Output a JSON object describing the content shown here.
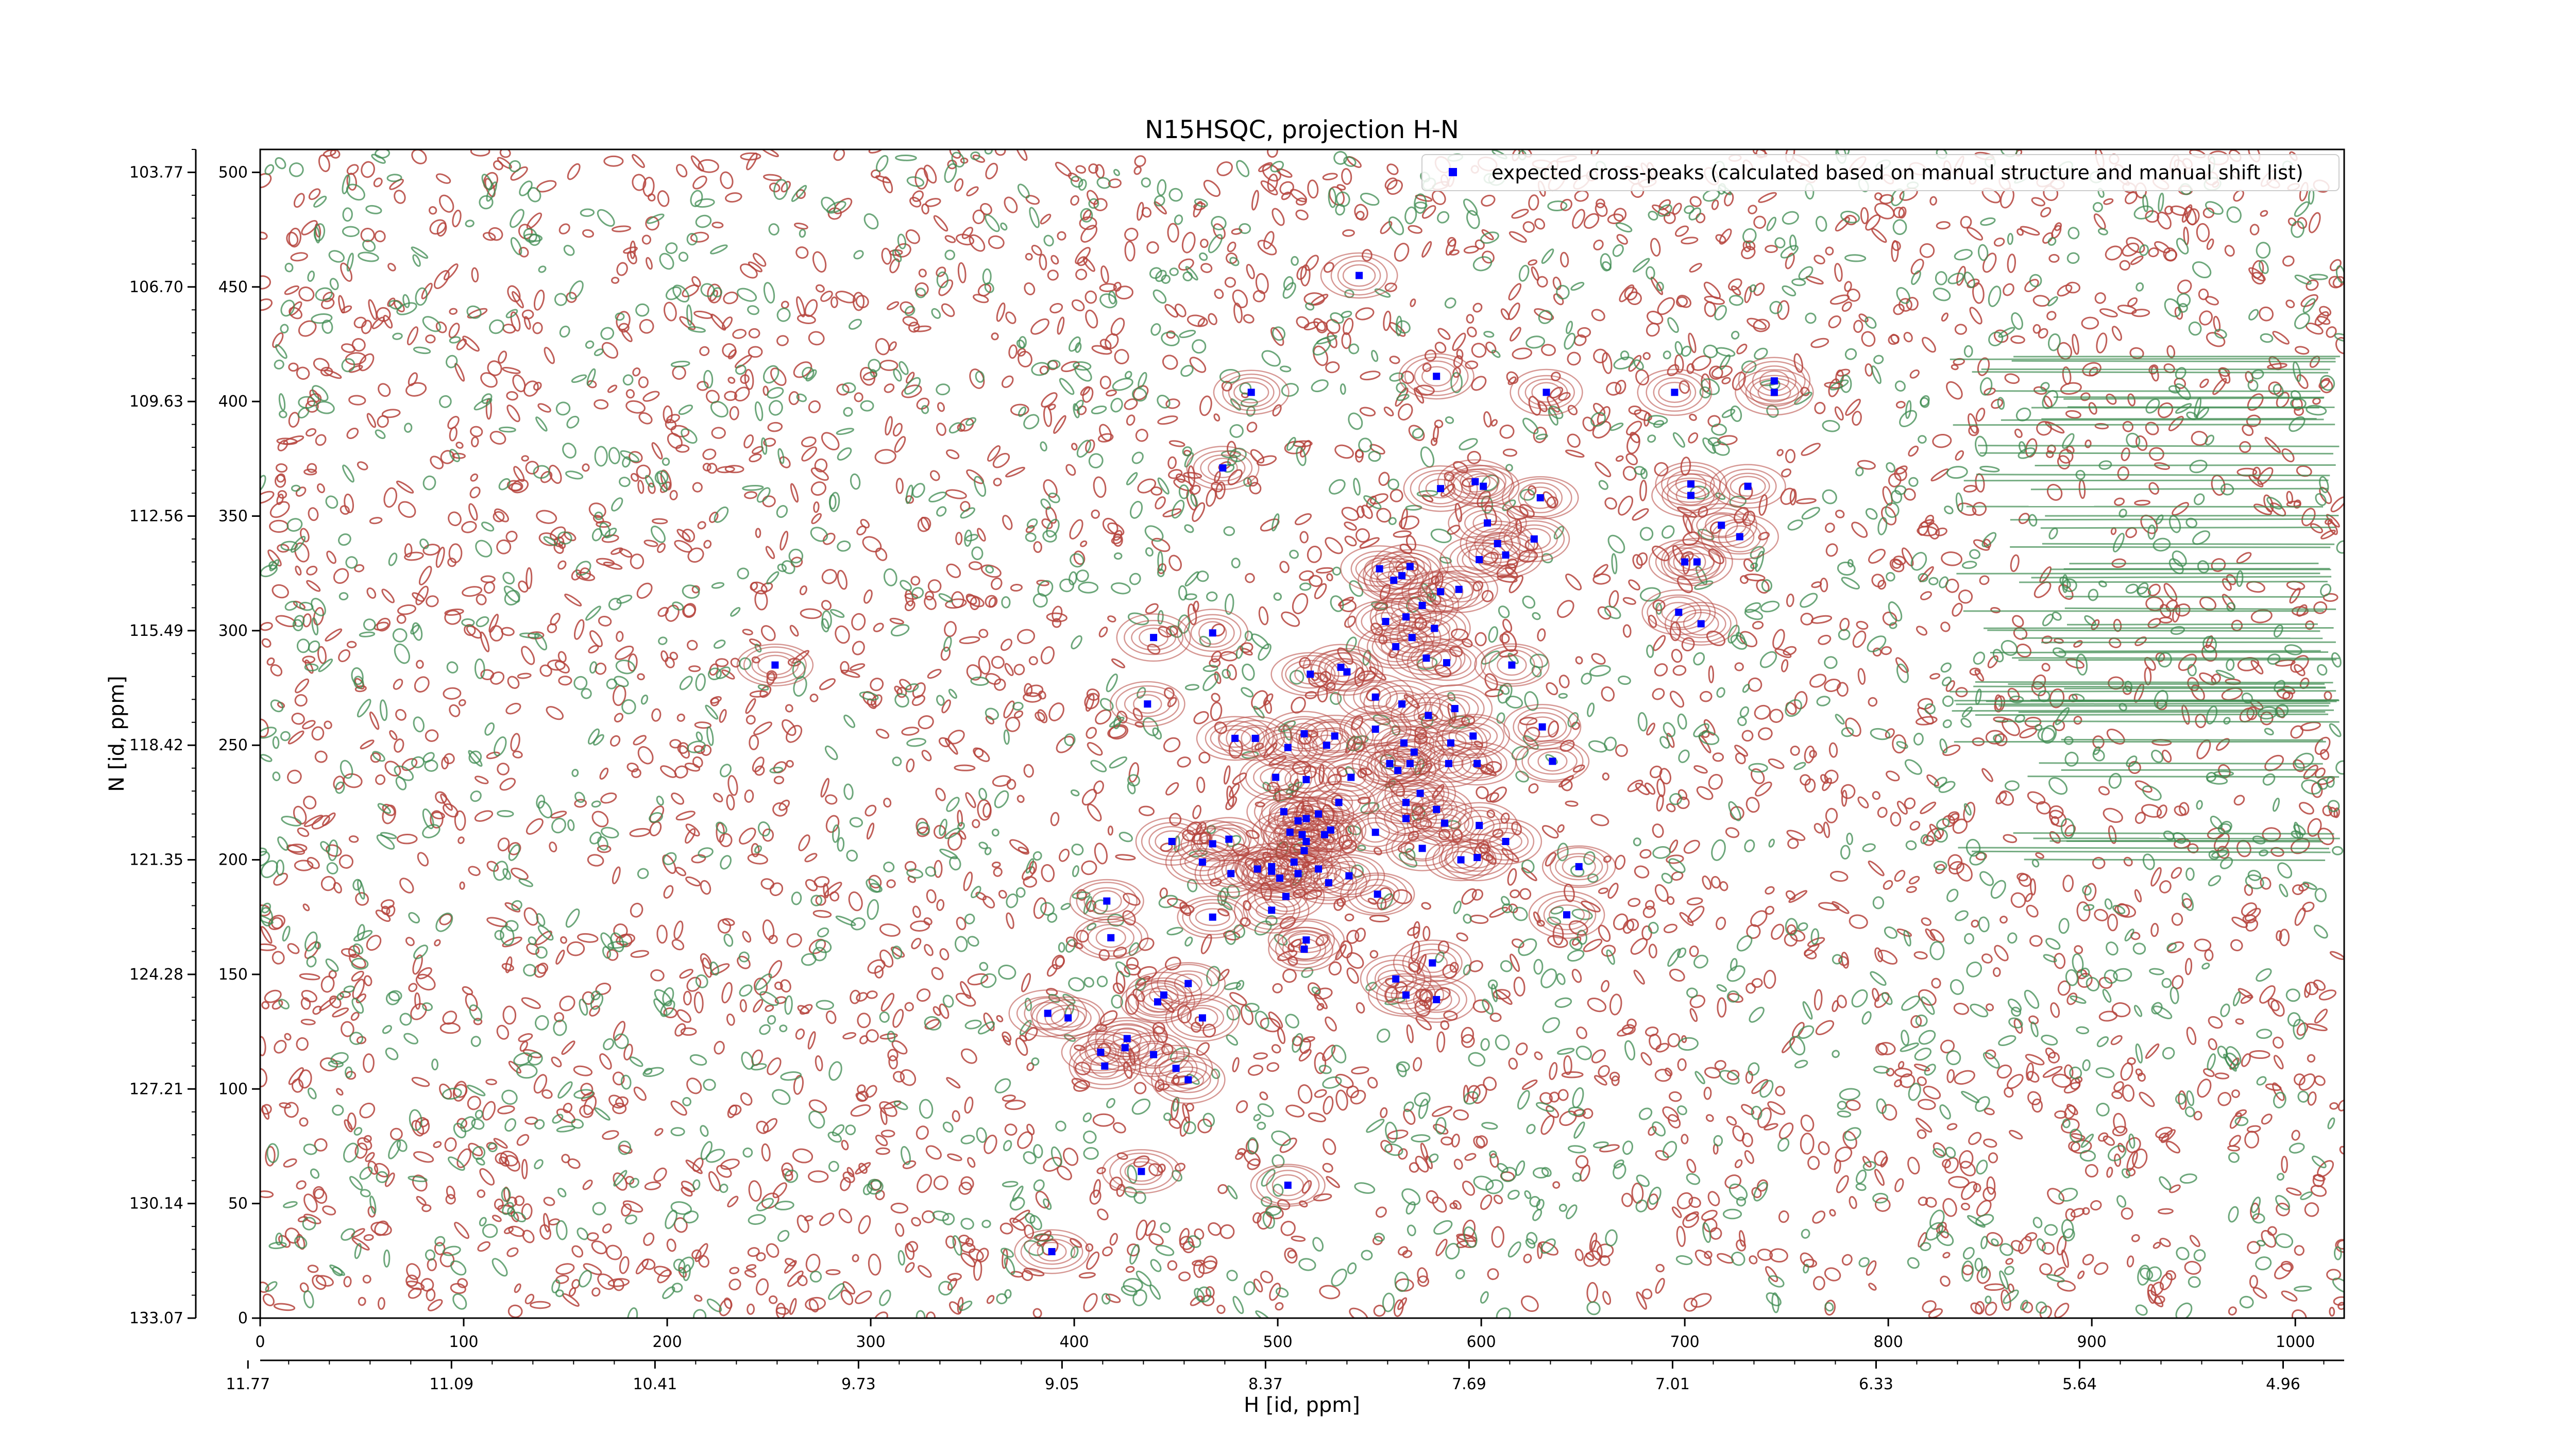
{
  "chart_data": {
    "type": "scatter",
    "title": "N15HSQC, projection H-N",
    "xlabel": "H [id, ppm]",
    "ylabel": "N [id, ppm]",
    "x_index_range": [
      0,
      1024
    ],
    "y_index_range": [
      0,
      510
    ],
    "ppm_x_range": [
      11.77,
      4.7
    ],
    "ppm_y_range": [
      133.07,
      103.5
    ],
    "x_index_ticks": [
      "0",
      "100",
      "200",
      "300",
      "400",
      "500",
      "600",
      "700",
      "800",
      "900",
      "1000"
    ],
    "x_ppm_ticks": [
      "11.77",
      "11.09",
      "10.41",
      "9.73",
      "9.05",
      "8.37",
      "7.69",
      "7.01",
      "6.33",
      "5.64",
      "4.96"
    ],
    "y_index_ticks": [
      "0",
      "50",
      "100",
      "150",
      "200",
      "250",
      "300",
      "350",
      "400",
      "450",
      "500"
    ],
    "y_ppm_ticks": [
      "133.07",
      "130.14",
      "127.21",
      "124.28",
      "121.35",
      "118.42",
      "115.49",
      "112.56",
      "109.63",
      "106.70",
      "103.77"
    ],
    "legend": {
      "label": "expected cross-peaks (calculated based on manual structure and manual shift list)",
      "placement": "top-right",
      "marker_color": "#0000ff"
    },
    "colors": {
      "positive_contours": "#b5433c",
      "negative_contours": "#3c8a4f",
      "peaks": "#0000ff"
    },
    "series": [
      {
        "name": "expected cross-peaks (calculated based on manual structure and manual shift list)",
        "points": [
          [
            540,
            455
          ],
          [
            578,
            411
          ],
          [
            487,
            404
          ],
          [
            632,
            404
          ],
          [
            695,
            404
          ],
          [
            744,
            404
          ],
          [
            744,
            409
          ],
          [
            473,
            371
          ],
          [
            580,
            362
          ],
          [
            597,
            365
          ],
          [
            601,
            363
          ],
          [
            629,
            358
          ],
          [
            703,
            364
          ],
          [
            703,
            359
          ],
          [
            731,
            363
          ],
          [
            603,
            347
          ],
          [
            718,
            346
          ],
          [
            727,
            341
          ],
          [
            626,
            340
          ],
          [
            608,
            338
          ],
          [
            599,
            331
          ],
          [
            612,
            333
          ],
          [
            700,
            330
          ],
          [
            706,
            330
          ],
          [
            550,
            327
          ],
          [
            565,
            328
          ],
          [
            561,
            324
          ],
          [
            557,
            322
          ],
          [
            580,
            317
          ],
          [
            589,
            318
          ],
          [
            571,
            311
          ],
          [
            553,
            304
          ],
          [
            563,
            306
          ],
          [
            566,
            297
          ],
          [
            577,
            301
          ],
          [
            558,
            293
          ],
          [
            697,
            308
          ],
          [
            708,
            303
          ],
          [
            439,
            297
          ],
          [
            468,
            299
          ],
          [
            573,
            288
          ],
          [
            583,
            286
          ],
          [
            615,
            285
          ],
          [
            253,
            285
          ],
          [
            531,
            284
          ],
          [
            516,
            281
          ],
          [
            534,
            282
          ],
          [
            548,
            271
          ],
          [
            561,
            268
          ],
          [
            574,
            263
          ],
          [
            587,
            266
          ],
          [
            436,
            268
          ],
          [
            528,
            254
          ],
          [
            513,
            255
          ],
          [
            505,
            249
          ],
          [
            524,
            250
          ],
          [
            548,
            257
          ],
          [
            562,
            251
          ],
          [
            585,
            251
          ],
          [
            596,
            254
          ],
          [
            630,
            258
          ],
          [
            635,
            243
          ],
          [
            479,
            253
          ],
          [
            489,
            253
          ],
          [
            555,
            242
          ],
          [
            559,
            239
          ],
          [
            565,
            242
          ],
          [
            567,
            247
          ],
          [
            584,
            242
          ],
          [
            598,
            242
          ],
          [
            499,
            236
          ],
          [
            514,
            235
          ],
          [
            536,
            236
          ],
          [
            570,
            229
          ],
          [
            563,
            225
          ],
          [
            563,
            218
          ],
          [
            578,
            222
          ],
          [
            582,
            216
          ],
          [
            599,
            215
          ],
          [
            612,
            208
          ],
          [
            503,
            221
          ],
          [
            510,
            217
          ],
          [
            514,
            218
          ],
          [
            520,
            220
          ],
          [
            530,
            225
          ],
          [
            526,
            213
          ],
          [
            506,
            212
          ],
          [
            512,
            211
          ],
          [
            523,
            211
          ],
          [
            548,
            212
          ],
          [
            571,
            205
          ],
          [
            590,
            200
          ],
          [
            448,
            208
          ],
          [
            468,
            207
          ],
          [
            476,
            209
          ],
          [
            463,
            199
          ],
          [
            490,
            196
          ],
          [
            497,
            197
          ],
          [
            508,
            199
          ],
          [
            513,
            204
          ],
          [
            514,
            208
          ],
          [
            497,
            195
          ],
          [
            501,
            192
          ],
          [
            510,
            194
          ],
          [
            520,
            196
          ],
          [
            525,
            190
          ],
          [
            535,
            193
          ],
          [
            598,
            201
          ],
          [
            648,
            197
          ],
          [
            477,
            194
          ],
          [
            504,
            184
          ],
          [
            549,
            185
          ],
          [
            416,
            182
          ],
          [
            468,
            175
          ],
          [
            497,
            178
          ],
          [
            642,
            176
          ],
          [
            514,
            165
          ],
          [
            513,
            161
          ],
          [
            418,
            166
          ],
          [
            576,
            155
          ],
          [
            456,
            146
          ],
          [
            444,
            141
          ],
          [
            441,
            138
          ],
          [
            558,
            148
          ],
          [
            578,
            139
          ],
          [
            563,
            141
          ],
          [
            387,
            133
          ],
          [
            397,
            131
          ],
          [
            463,
            131
          ],
          [
            426,
            122
          ],
          [
            425,
            118
          ],
          [
            439,
            115
          ],
          [
            413,
            116
          ],
          [
            415,
            110
          ],
          [
            450,
            109
          ],
          [
            456,
            104
          ],
          [
            433,
            64
          ],
          [
            505,
            58
          ],
          [
            389,
            29
          ]
        ]
      }
    ]
  }
}
